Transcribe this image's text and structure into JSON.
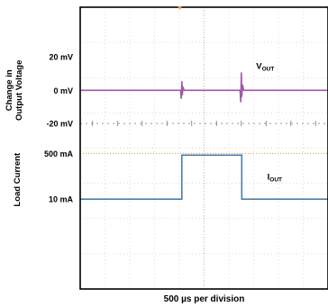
{
  "chart_data": {
    "type": "line",
    "title": "",
    "xlabel": "500 µs per division",
    "x_divisions": 10,
    "y_divisions": 8,
    "axis_groups": [
      {
        "label_lines": [
          "Change in",
          "Output Voltage"
        ]
      },
      {
        "label_lines": [
          "Load Current"
        ]
      }
    ],
    "tick_labels": [
      "20 mV",
      "0 mV",
      "-20 mV",
      "500 mA",
      "10 mA"
    ],
    "series": [
      {
        "label": {
          "base": "V",
          "sub": "OUT"
        },
        "color": "#9e5ba0",
        "x_div": [
          0,
          4.05,
          4.08,
          4.1,
          4.12,
          4.15,
          4.2,
          6.45,
          6.48,
          6.5,
          6.52,
          6.55,
          6.6,
          10
        ],
        "y_div": [
          5.64,
          5.64,
          5.4,
          5.9,
          5.5,
          5.72,
          5.64,
          5.64,
          5.3,
          6.15,
          5.45,
          5.8,
          5.64,
          5.64
        ]
      },
      {
        "label": {
          "base": "I",
          "sub": "OUT"
        },
        "color": "#4a7ea6",
        "x_div": [
          0,
          4.1,
          4.1,
          6.52,
          6.52,
          10
        ],
        "y_div": [
          2.55,
          2.55,
          3.8,
          3.8,
          2.55,
          2.55
        ]
      }
    ],
    "reference_lines": [
      {
        "style": "dashed-marked",
        "color": "#777777",
        "y_div": 4.7
      },
      {
        "style": "dotted",
        "color": "#c9a24a",
        "y_div": 3.85
      }
    ]
  }
}
